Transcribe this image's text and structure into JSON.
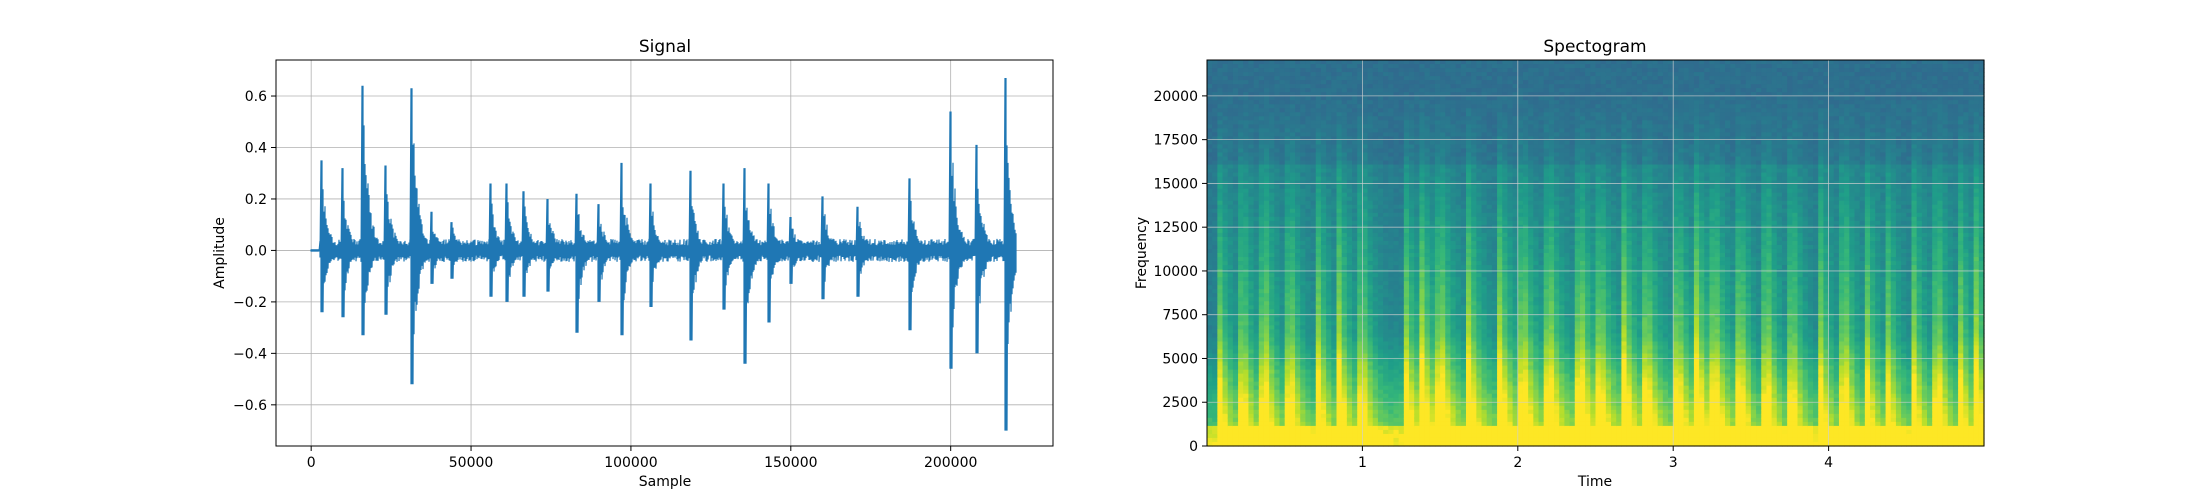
{
  "chart_data": [
    {
      "type": "line",
      "title": "Signal",
      "xlabel": "Sample",
      "ylabel": "Amplitude",
      "xlim": [
        -11000,
        232000
      ],
      "ylim": [
        -0.76,
        0.74
      ],
      "grid": true,
      "color": "#1f77b4",
      "xticks": [
        0,
        50000,
        100000,
        150000,
        200000
      ],
      "xtick_labels": [
        "0",
        "50000",
        "100000",
        "150000",
        "200000"
      ],
      "yticks": [
        -0.6,
        -0.4,
        -0.2,
        0.0,
        0.2,
        0.4,
        0.6
      ],
      "ytick_labels": [
        "−0.6",
        "−0.4",
        "−0.2",
        "0.0",
        "0.2",
        "0.4",
        "0.6"
      ],
      "signal_length": 220500,
      "transients": [
        {
          "x": 3200,
          "pos": 0.35,
          "neg": -0.24
        },
        {
          "x": 9700,
          "pos": 0.32,
          "neg": -0.26
        },
        {
          "x": 16200,
          "pos": 0.64,
          "neg": -0.33
        },
        {
          "x": 23400,
          "pos": 0.33,
          "neg": -0.25
        },
        {
          "x": 31500,
          "pos": 0.63,
          "neg": -0.52
        },
        {
          "x": 37700,
          "pos": 0.15,
          "neg": -0.13
        },
        {
          "x": 44000,
          "pos": 0.11,
          "neg": -0.11
        },
        {
          "x": 56000,
          "pos": 0.26,
          "neg": -0.18
        },
        {
          "x": 61000,
          "pos": 0.26,
          "neg": -0.2
        },
        {
          "x": 66500,
          "pos": 0.23,
          "neg": -0.18
        },
        {
          "x": 74000,
          "pos": 0.2,
          "neg": -0.16
        },
        {
          "x": 83000,
          "pos": 0.22,
          "neg": -0.32
        },
        {
          "x": 90000,
          "pos": 0.18,
          "neg": -0.2
        },
        {
          "x": 97000,
          "pos": 0.34,
          "neg": -0.33
        },
        {
          "x": 106000,
          "pos": 0.26,
          "neg": -0.22
        },
        {
          "x": 118500,
          "pos": 0.31,
          "neg": -0.35
        },
        {
          "x": 129000,
          "pos": 0.26,
          "neg": -0.23
        },
        {
          "x": 135500,
          "pos": 0.32,
          "neg": -0.44
        },
        {
          "x": 143000,
          "pos": 0.26,
          "neg": -0.28
        },
        {
          "x": 150000,
          "pos": 0.13,
          "neg": -0.13
        },
        {
          "x": 160000,
          "pos": 0.21,
          "neg": -0.19
        },
        {
          "x": 171000,
          "pos": 0.17,
          "neg": -0.18
        },
        {
          "x": 187000,
          "pos": 0.28,
          "neg": -0.31
        },
        {
          "x": 200000,
          "pos": 0.54,
          "neg": -0.46
        },
        {
          "x": 208000,
          "pos": 0.41,
          "neg": -0.4
        },
        {
          "x": 217000,
          "pos": 0.67,
          "neg": -0.7
        }
      ]
    },
    {
      "type": "heatmap",
      "title": "Spectogram",
      "xlabel": "Time",
      "ylabel": "Frequency",
      "xlim": [
        0,
        5.0
      ],
      "ylim": [
        0,
        22050
      ],
      "grid": true,
      "colormap": "viridis",
      "xticks": [
        1,
        2,
        3,
        4
      ],
      "xtick_labels": [
        "1",
        "2",
        "3",
        "4"
      ],
      "yticks": [
        0,
        2500,
        5000,
        7500,
        10000,
        12500,
        15000,
        17500,
        20000
      ],
      "ytick_labels": [
        "0",
        "2500",
        "5000",
        "7500",
        "10000",
        "12500",
        "15000",
        "17500",
        "20000"
      ],
      "onsets": [
        0.07,
        0.22,
        0.37,
        0.53,
        0.71,
        0.85,
        0.99,
        1.27,
        1.38,
        1.5,
        1.68,
        1.88,
        2.03,
        2.2,
        2.4,
        2.52,
        2.68,
        2.82,
        3.02,
        3.15,
        3.26,
        3.42,
        3.6,
        3.76,
        3.94,
        4.1,
        4.24,
        4.37,
        4.54,
        4.7,
        4.84,
        4.95
      ]
    }
  ]
}
